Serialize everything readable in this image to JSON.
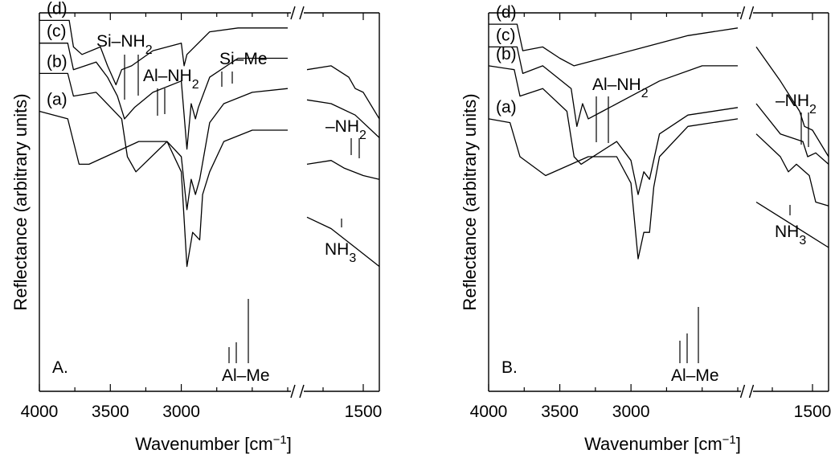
{
  "figure": {
    "ylabel": "Reflectance (arbitrary units)",
    "xlabel_main": "Wavenumber [cm",
    "xlabel_sup": "−1",
    "xlabel_close": "]"
  },
  "chart_data": [
    {
      "type": "line",
      "panel_label": "A.",
      "xlabel": "Wavenumber [cm−1]",
      "ylabel": "Reflectance (arbitrary units)",
      "x_axis_broken": true,
      "x_ranges": [
        [
          4000,
          2250
        ],
        [
          1850,
          1400
        ]
      ],
      "x_ticks": [
        4000,
        3500,
        3000,
        1500
      ],
      "x_tick_labels": [
        "4000",
        "3500",
        "3000",
        "1500"
      ],
      "series": [
        {
          "name": "(a)",
          "points": [
            [
              4000,
              0.74
            ],
            [
              3800,
              0.72
            ],
            [
              3720,
              0.6
            ],
            [
              3650,
              0.6
            ],
            [
              3300,
              0.66
            ],
            [
              3100,
              0.66
            ],
            [
              3000,
              0.58
            ],
            [
              2960,
              0.33
            ],
            [
              2920,
              0.42
            ],
            [
              2870,
              0.4
            ],
            [
              2850,
              0.52
            ],
            [
              2800,
              0.58
            ],
            [
              2700,
              0.66
            ],
            [
              2500,
              0.69
            ],
            [
              2250,
              0.69
            ],
            [
              1850,
              0.46
            ],
            [
              1700,
              0.43
            ],
            [
              1550,
              0.38
            ],
            [
              1400,
              0.33
            ]
          ]
        },
        {
          "name": "(b)",
          "points": [
            [
              4000,
              0.84
            ],
            [
              3800,
              0.84
            ],
            [
              3760,
              0.78
            ],
            [
              3600,
              0.79
            ],
            [
              3420,
              0.72
            ],
            [
              3380,
              0.62
            ],
            [
              3320,
              0.58
            ],
            [
              3100,
              0.66
            ],
            [
              3000,
              0.62
            ],
            [
              2960,
              0.48
            ],
            [
              2930,
              0.56
            ],
            [
              2900,
              0.52
            ],
            [
              2870,
              0.56
            ],
            [
              2800,
              0.71
            ],
            [
              2700,
              0.76
            ],
            [
              2500,
              0.79
            ],
            [
              2250,
              0.8
            ],
            [
              1850,
              0.6
            ],
            [
              1700,
              0.61
            ],
            [
              1620,
              0.59
            ],
            [
              1500,
              0.57
            ],
            [
              1400,
              0.56
            ]
          ]
        },
        {
          "name": "(c)",
          "points": [
            [
              4000,
              0.92
            ],
            [
              3800,
              0.92
            ],
            [
              3760,
              0.85
            ],
            [
              3600,
              0.87
            ],
            [
              3520,
              0.83
            ],
            [
              3450,
              0.78
            ],
            [
              3400,
              0.72
            ],
            [
              3330,
              0.75
            ],
            [
              3200,
              0.79
            ],
            [
              3000,
              0.82
            ],
            [
              2960,
              0.64
            ],
            [
              2930,
              0.76
            ],
            [
              2900,
              0.72
            ],
            [
              2880,
              0.75
            ],
            [
              2800,
              0.83
            ],
            [
              2600,
              0.88
            ],
            [
              2250,
              0.88
            ],
            [
              1850,
              0.77
            ],
            [
              1700,
              0.76
            ],
            [
              1550,
              0.73
            ],
            [
              1400,
              0.67
            ]
          ]
        },
        {
          "name": "(d)",
          "points": [
            [
              4000,
              0.98
            ],
            [
              3790,
              0.98
            ],
            [
              3760,
              0.91
            ],
            [
              3700,
              0.89
            ],
            [
              3570,
              0.91
            ],
            [
              3520,
              0.86
            ],
            [
              3460,
              0.81
            ],
            [
              3420,
              0.85
            ],
            [
              3350,
              0.86
            ],
            [
              3200,
              0.9
            ],
            [
              3000,
              0.92
            ],
            [
              2980,
              0.86
            ],
            [
              2960,
              0.89
            ],
            [
              2800,
              0.95
            ],
            [
              2600,
              0.96
            ],
            [
              2250,
              0.96
            ],
            [
              1850,
              0.85
            ],
            [
              1700,
              0.86
            ],
            [
              1590,
              0.83
            ],
            [
              1550,
              0.8
            ],
            [
              1500,
              0.79
            ],
            [
              1400,
              0.72
            ]
          ]
        }
      ],
      "annotations": [
        "Si–NH2",
        "Al–NH2",
        "Si–Me",
        "–NH2",
        "NH3",
        "Al–Me"
      ]
    },
    {
      "type": "line",
      "panel_label": "B.",
      "xlabel": "Wavenumber [cm−1]",
      "ylabel": "Reflectance (arbitrary units)",
      "x_axis_broken": true,
      "x_ranges": [
        [
          4000,
          2250
        ],
        [
          1850,
          1400
        ]
      ],
      "x_ticks": [
        4000,
        3500,
        3000,
        1500
      ],
      "x_tick_labels": [
        "4000",
        "3500",
        "3000",
        "1500"
      ],
      "series": [
        {
          "name": "(a)",
          "points": [
            [
              4000,
              0.72
            ],
            [
              3850,
              0.71
            ],
            [
              3780,
              0.62
            ],
            [
              3600,
              0.57
            ],
            [
              3300,
              0.62
            ],
            [
              3100,
              0.62
            ],
            [
              3000,
              0.55
            ],
            [
              2950,
              0.35
            ],
            [
              2910,
              0.42
            ],
            [
              2870,
              0.42
            ],
            [
              2840,
              0.54
            ],
            [
              2800,
              0.62
            ],
            [
              2600,
              0.7
            ],
            [
              2250,
              0.72
            ],
            [
              1850,
              0.5
            ],
            [
              1700,
              0.46
            ],
            [
              1550,
              0.42
            ],
            [
              1400,
              0.38
            ]
          ]
        },
        {
          "name": "(b)",
          "points": [
            [
              4000,
              0.86
            ],
            [
              3820,
              0.85
            ],
            [
              3780,
              0.78
            ],
            [
              3620,
              0.8
            ],
            [
              3450,
              0.74
            ],
            [
              3400,
              0.62
            ],
            [
              3350,
              0.6
            ],
            [
              3100,
              0.66
            ],
            [
              3000,
              0.61
            ],
            [
              2950,
              0.52
            ],
            [
              2910,
              0.58
            ],
            [
              2870,
              0.56
            ],
            [
              2800,
              0.68
            ],
            [
              2600,
              0.73
            ],
            [
              2250,
              0.75
            ],
            [
              1850,
              0.68
            ],
            [
              1700,
              0.62
            ],
            [
              1650,
              0.58
            ],
            [
              1600,
              0.6
            ],
            [
              1520,
              0.57
            ],
            [
              1480,
              0.5
            ],
            [
              1400,
              0.49
            ]
          ]
        },
        {
          "name": "(c)",
          "points": [
            [
              4000,
              0.91
            ],
            [
              3800,
              0.91
            ],
            [
              3760,
              0.84
            ],
            [
              3620,
              0.86
            ],
            [
              3420,
              0.8
            ],
            [
              3380,
              0.7
            ],
            [
              3340,
              0.76
            ],
            [
              3300,
              0.72
            ],
            [
              3200,
              0.74
            ],
            [
              2800,
              0.82
            ],
            [
              2500,
              0.86
            ],
            [
              2250,
              0.86
            ],
            [
              1850,
              0.76
            ],
            [
              1700,
              0.68
            ],
            [
              1560,
              0.66
            ],
            [
              1530,
              0.62
            ],
            [
              1480,
              0.63
            ],
            [
              1400,
              0.6
            ]
          ]
        },
        {
          "name": "(d)",
          "points": [
            [
              4000,
              0.97
            ],
            [
              3800,
              0.97
            ],
            [
              3760,
              0.9
            ],
            [
              3620,
              0.91
            ],
            [
              3500,
              0.88
            ],
            [
              3400,
              0.86
            ],
            [
              3200,
              0.88
            ],
            [
              2900,
              0.91
            ],
            [
              2600,
              0.94
            ],
            [
              2250,
              0.96
            ],
            [
              1850,
              0.91
            ],
            [
              1700,
              0.82
            ],
            [
              1580,
              0.74
            ],
            [
              1550,
              0.7
            ],
            [
              1500,
              0.69
            ],
            [
              1400,
              0.62
            ]
          ]
        }
      ],
      "annotations": [
        "Al–NH2",
        "–NH2",
        "NH3",
        "Al–Me"
      ]
    }
  ]
}
